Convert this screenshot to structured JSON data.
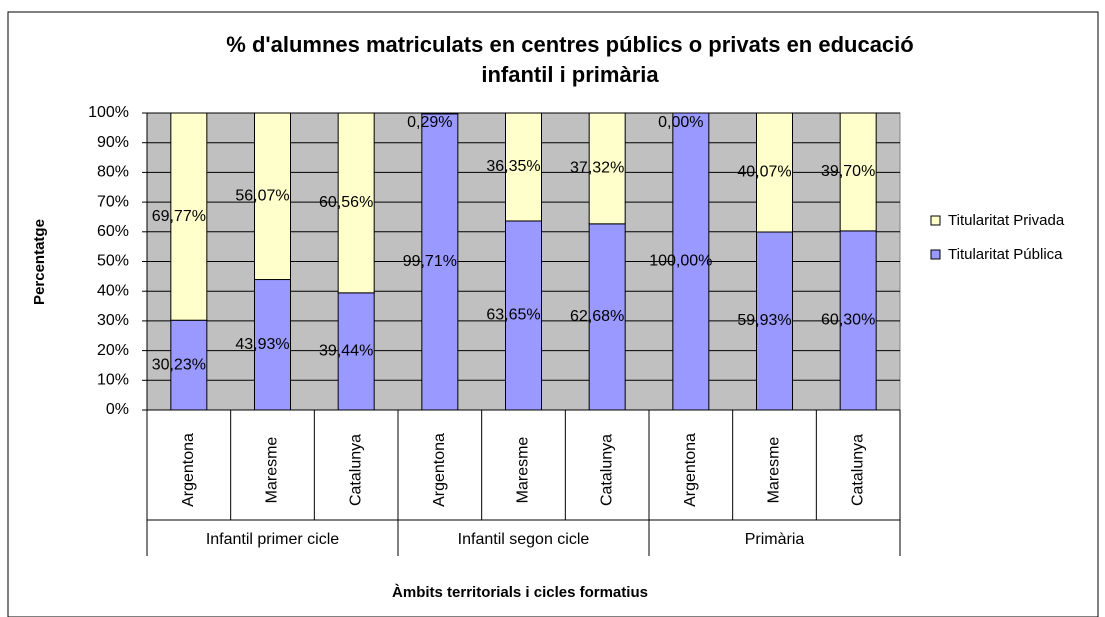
{
  "chart_data": {
    "type": "stacked_bar",
    "title": [
      "% d'alumnes matriculats en centres públics o privats en educació",
      "infantil i primària"
    ],
    "y_axis_label": "Percentatge",
    "x_axis_label": "Àmbits territorials i cicles formatius",
    "categories": [
      "Argentona",
      "Maresme",
      "Catalunya",
      "Argentona",
      "Maresme",
      "Catalunya",
      "Argentona",
      "Maresme",
      "Catalunya"
    ],
    "groups": [
      "Infantil primer cicle",
      "Infantil segon cicle",
      "Primària"
    ],
    "series": [
      {
        "name": "Titularitat Pública",
        "color": "#9999ff",
        "values": [
          30.23,
          43.93,
          39.44,
          99.71,
          63.65,
          62.68,
          100,
          59.93,
          60.3
        ],
        "value_labels": [
          "30,23%",
          "43,93%",
          "39,44%",
          "99,71%",
          "63,65%",
          "62,68%",
          "100,00%",
          "59,93%",
          "60,30%"
        ]
      },
      {
        "name": "Titularitat Privada",
        "color": "#ffffcc",
        "values": [
          69.77,
          56.07,
          60.56,
          0.29,
          36.35,
          37.32,
          0,
          40.07,
          39.7
        ],
        "value_labels": [
          "69,77%",
          "56,07%",
          "60,56%",
          "0,29%",
          "36,35%",
          "37,32%",
          "0,00%",
          "40,07%",
          "39,70%"
        ]
      }
    ],
    "ylim": [
      0,
      100
    ],
    "yticks": [
      {
        "value": 0,
        "label": "0%"
      },
      {
        "value": 10,
        "label": "10%"
      },
      {
        "value": 20,
        "label": "20%"
      },
      {
        "value": 30,
        "label": "30%"
      },
      {
        "value": 40,
        "label": "40%"
      },
      {
        "value": 50,
        "label": "50%"
      },
      {
        "value": 60,
        "label": "60%"
      },
      {
        "value": 70,
        "label": "70%"
      },
      {
        "value": 80,
        "label": "80%"
      },
      {
        "value": 90,
        "label": "90%"
      },
      {
        "value": 100,
        "label": "100%"
      }
    ],
    "grid": true,
    "plot_background": "#c0c0c0",
    "legend": "right"
  }
}
